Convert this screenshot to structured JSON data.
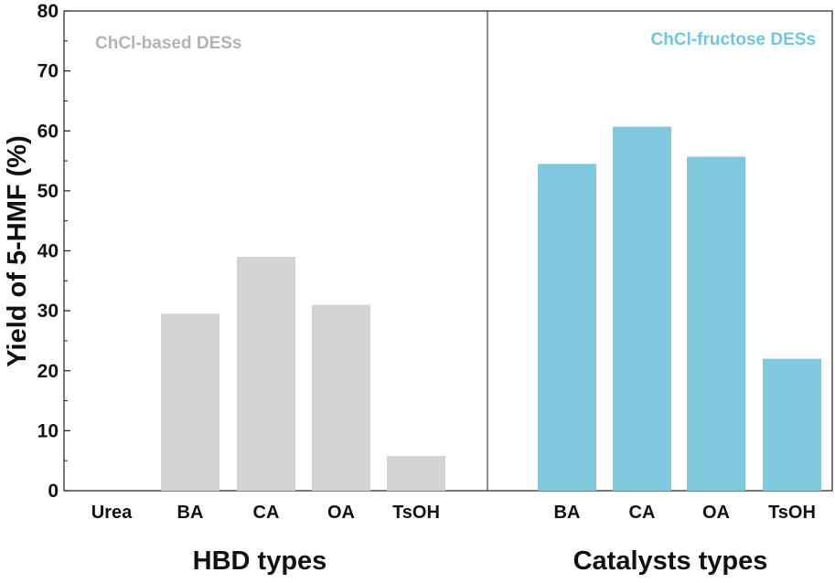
{
  "chart_data": {
    "type": "bar",
    "ylabel": "Yield of 5-HMF (%)",
    "ylim": [
      0,
      80
    ],
    "yticks": [
      0,
      10,
      20,
      30,
      40,
      50,
      60,
      70,
      80
    ],
    "grid": false,
    "panels": [
      {
        "title": "ChCl-based DESs",
        "xlabel": "HBD types",
        "color": "#d3d3d3",
        "title_color": "#b3b3b3",
        "categories": [
          "Urea",
          "BA",
          "CA",
          "OA",
          "TsOH"
        ],
        "values": [
          0,
          29.5,
          39,
          31,
          5.8
        ]
      },
      {
        "title": "ChCl-fructose DESs",
        "xlabel": "Catalysts types",
        "color": "#80c8de",
        "title_color": "#6fc6e2",
        "categories": [
          "BA",
          "CA",
          "OA",
          "TsOH"
        ],
        "values": [
          54.5,
          60.7,
          55.7,
          22
        ]
      }
    ]
  }
}
